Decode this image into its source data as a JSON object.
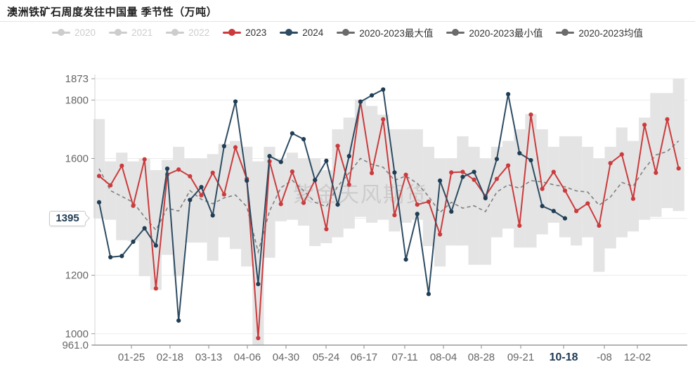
{
  "title": "澳洲铁矿石周度发往中国量 季节性（万吨）",
  "watermark": "紫金天风期货",
  "colors": {
    "red_2023": "#cb3b3d",
    "navy_2024": "#2d4c62",
    "navy_dot": "#1f3d55",
    "band_gray": "#e4e4e4",
    "mean_gray": "#808080",
    "grid": "#ebebeb",
    "axis_y_line": "#d6d6d6",
    "axis_x_line": "#9a9a9a",
    "label_gray": "#666666",
    "dimmed_legend": "#cdcdcd",
    "highlight_navy": "#1e3a52"
  },
  "legend": {
    "items": [
      {
        "label": "2020",
        "color": "#cdcdcd",
        "text_color": "#cdcdcd",
        "dimmed": true
      },
      {
        "label": "2021",
        "color": "#cdcdcd",
        "text_color": "#cdcdcd",
        "dimmed": true
      },
      {
        "label": "2022",
        "color": "#cdcdcd",
        "text_color": "#cdcdcd",
        "dimmed": true
      },
      {
        "label": "2023",
        "color": "#cb3b3d",
        "text_color": "#333333",
        "dimmed": false
      },
      {
        "label": "2024",
        "color": "#2d4c62",
        "text_color": "#333333",
        "dimmed": false
      },
      {
        "label": "2020-2023最大值",
        "color": "#6b6b6b",
        "text_color": "#333333",
        "dimmed": false
      },
      {
        "label": "2020-2023最小值",
        "color": "#6b6b6b",
        "text_color": "#333333",
        "dimmed": false
      },
      {
        "label": "2020-2023均值",
        "color": "#6b6b6b",
        "text_color": "#333333",
        "dimmed": false
      }
    ]
  },
  "y_axis": {
    "ticks": [
      {
        "label": "1873",
        "value": 1873
      },
      {
        "label": "1800",
        "value": 1800
      },
      {
        "label": "1600",
        "value": 1600
      },
      {
        "label": "1200",
        "value": 1200
      },
      {
        "label": "1000",
        "value": 1000
      },
      {
        "label": "961.0",
        "value": 961
      }
    ],
    "current_label": "1395",
    "current_value": 1395
  },
  "x_axis": {
    "ticks": [
      {
        "label": "01-25",
        "pos": 0.0617,
        "highlight": false
      },
      {
        "label": "02-18",
        "pos": 0.1269,
        "highlight": false
      },
      {
        "label": "03-13",
        "pos": 0.1922,
        "highlight": false
      },
      {
        "label": "04-06",
        "pos": 0.2574,
        "highlight": false
      },
      {
        "label": "04-30",
        "pos": 0.3226,
        "highlight": false
      },
      {
        "label": "05-24",
        "pos": 0.3903,
        "highlight": false
      },
      {
        "label": "06-17",
        "pos": 0.4543,
        "highlight": false
      },
      {
        "label": "07-11",
        "pos": 0.5231,
        "highlight": false
      },
      {
        "label": "08-04",
        "pos": 0.5884,
        "highlight": false
      },
      {
        "label": "08-28",
        "pos": 0.6524,
        "highlight": false
      },
      {
        "label": "09-21",
        "pos": 0.7189,
        "highlight": false
      },
      {
        "label": "10-18",
        "pos": 0.7913,
        "highlight": true
      },
      {
        "label": "-08",
        "pos": 0.86,
        "highlight": false
      },
      {
        "label": "12-02",
        "pos": 0.9158,
        "highlight": false
      }
    ]
  },
  "chart_data": {
    "type": "line",
    "title": "澳洲铁矿石周度发往中国量 季节性（万吨）",
    "x_unit": "week-of-year (52 weekly points)",
    "ylim": [
      961,
      1873
    ],
    "y_gridlines": [
      1873,
      1800,
      1600,
      1395,
      1200,
      1000
    ],
    "legend_position": "top",
    "series": [
      {
        "name": "2023",
        "type": "line",
        "color": "#cb3b3d",
        "values": [
          1540,
          1508,
          1575,
          1438,
          1597,
          1155,
          1545,
          1562,
          1539,
          1474,
          1551,
          1477,
          1638,
          1530,
          985,
          1590,
          1444,
          1555,
          1448,
          1526,
          1358,
          1643,
          1510,
          1795,
          1550,
          1734,
          1406,
          1544,
          1442,
          1452,
          1340,
          1552,
          1554,
          1527,
          1471,
          1530,
          1576,
          1370,
          1750,
          1496,
          1554,
          1490,
          1420,
          1446,
          1370,
          1584,
          1614,
          1462,
          1715,
          1551,
          1734,
          1566
        ]
      },
      {
        "name": "2024",
        "type": "line",
        "color": "#2d4c62",
        "ends_at_label": "10-18",
        "last_value": 1395,
        "values": [
          1450,
          1262,
          1266,
          1315,
          1361,
          1302,
          1565,
          1045,
          1458,
          1502,
          1405,
          1642,
          1795,
          1524,
          1170,
          1608,
          1588,
          1686,
          1666,
          1526,
          1592,
          1442,
          1608,
          1794,
          1816,
          1836,
          1552,
          1254,
          1410,
          1136,
          1524,
          1418,
          1537,
          1554,
          1464,
          1598,
          1820,
          1618,
          1594,
          1437,
          1420,
          1395
        ]
      },
      {
        "name": "2020-2023均值",
        "type": "line",
        "style": "dashed",
        "color": "#808080",
        "values": [
          1565,
          1490,
          1470,
          1450,
          1400,
          1355,
          1430,
          1420,
          1490,
          1460,
          1445,
          1465,
          1475,
          1435,
          1280,
          1420,
          1500,
          1525,
          1490,
          1450,
          1435,
          1505,
          1550,
          1600,
          1580,
          1570,
          1525,
          1540,
          1515,
          1470,
          1415,
          1450,
          1430,
          1438,
          1418,
          1485,
          1510,
          1498,
          1524,
          1520,
          1510,
          1503,
          1489,
          1485,
          1440,
          1468,
          1518,
          1505,
          1565,
          1612,
          1624,
          1660
        ]
      }
    ],
    "band": {
      "name_max": "2020-2023最大值",
      "name_min": "2020-2023最小值",
      "color": "#e4e4e4",
      "max": [
        1735,
        1590,
        1620,
        1590,
        1600,
        1560,
        1595,
        1640,
        1600,
        1600,
        1615,
        1650,
        1660,
        1640,
        1590,
        1640,
        1600,
        1620,
        1600,
        1600,
        1560,
        1700,
        1740,
        1802,
        1780,
        1750,
        1700,
        1700,
        1700,
        1640,
        1600,
        1600,
        1676,
        1640,
        1600,
        1640,
        1660,
        1700,
        1752,
        1700,
        1640,
        1676,
        1676,
        1640,
        1600,
        1640,
        1706,
        1660,
        1740,
        1824,
        1824,
        1873
      ],
      "min": [
        1395,
        1390,
        1320,
        1318,
        1197,
        1150,
        1270,
        1197,
        1312,
        1312,
        1250,
        1330,
        1290,
        1230,
        961,
        1260,
        1385,
        1390,
        1370,
        1300,
        1310,
        1330,
        1360,
        1400,
        1380,
        1390,
        1350,
        1380,
        1390,
        1300,
        1230,
        1302,
        1302,
        1236,
        1236,
        1330,
        1360,
        1295,
        1295,
        1340,
        1380,
        1330,
        1302,
        1330,
        1212,
        1292,
        1330,
        1350,
        1390,
        1400,
        1430,
        1420
      ]
    }
  }
}
